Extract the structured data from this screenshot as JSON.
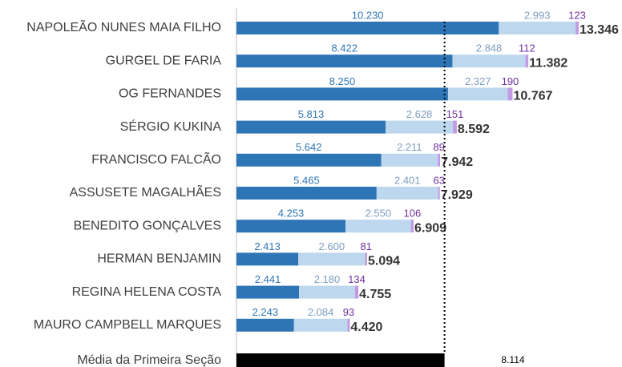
{
  "chart_data": {
    "type": "bar",
    "orientation": "horizontal",
    "stacked": true,
    "categories": [
      "NAPOLEÃO NUNES MAIA FILHO",
      "GURGEL DE FARIA",
      "OG FERNANDES",
      "SÉRGIO KUKINA",
      "FRANCISCO FALCÃO",
      "ASSUSETE MAGALHÃES",
      "BENEDITO GONÇALVES",
      "HERMAN BENJAMIN",
      "REGINA HELENA COSTA",
      "MAURO CAMPBELL MARQUES"
    ],
    "series": [
      {
        "color": "#2e75b6",
        "label_color": "#2e75b6",
        "values": [
          10230,
          8422,
          8250,
          5813,
          5642,
          5465,
          4253,
          2413,
          2441,
          2243
        ],
        "value_labels": [
          "10.230",
          "8.422",
          "8.250",
          "5.813",
          "5.642",
          "5.465",
          "4.253",
          "2.413",
          "2.441",
          "2.243"
        ]
      },
      {
        "color": "#bdd7ee",
        "label_color": "#7c9dc0",
        "values": [
          2993,
          2848,
          2327,
          2628,
          2211,
          2401,
          2550,
          2600,
          2180,
          2084
        ],
        "value_labels": [
          "2.993",
          "2.848",
          "2.327",
          "2.628",
          "2.211",
          "2.401",
          "2.550",
          "2.600",
          "2.180",
          "2.084"
        ]
      },
      {
        "color": "#c39be2",
        "label_color": "#7030a0",
        "values": [
          123,
          112,
          190,
          151,
          89,
          63,
          106,
          81,
          134,
          93
        ],
        "value_labels": [
          "123",
          "112",
          "190",
          "151",
          "89",
          "63",
          "106",
          "81",
          "134",
          "93"
        ]
      }
    ],
    "totals": {
      "values": [
        13346,
        11382,
        10767,
        8592,
        7942,
        7929,
        6909,
        5094,
        4755,
        4420
      ],
      "value_labels": [
        "13.346",
        "11.382",
        "10.767",
        "8.592",
        "7.942",
        "7.929",
        "6.909",
        "5.094",
        "4.755",
        "4.420"
      ]
    },
    "average": {
      "name": "Média da Primeira Seção",
      "value": 8114,
      "value_label": "8.114",
      "color": "#000000"
    }
  }
}
